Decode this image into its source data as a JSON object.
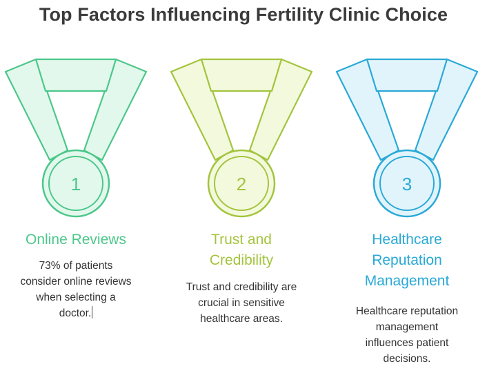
{
  "title": "Top Factors Influencing Fertility Clinic Choice",
  "colors": {
    "green_stroke": "#4cc78a",
    "green_fill": "#e3f8ec",
    "olive_stroke": "#a3c43d",
    "olive_fill": "#f3f9dd",
    "blue_stroke": "#2aa9d6",
    "blue_fill": "#e2f4fb",
    "title_color": "#3b3b3b"
  },
  "medals": [
    {
      "number": "1",
      "heading": "Online Reviews",
      "description": "73% of patients consider online reviews when selecting a doctor.",
      "icon": "medal-icon"
    },
    {
      "number": "2",
      "heading": "Trust and Credibility",
      "description": "Trust and credibility are crucial in sensitive healthcare areas.",
      "icon": "medal-icon"
    },
    {
      "number": "3",
      "heading": "Healthcare Reputation Management",
      "description": "Healthcare reputation management influences patient decisions.",
      "icon": "medal-icon"
    }
  ]
}
